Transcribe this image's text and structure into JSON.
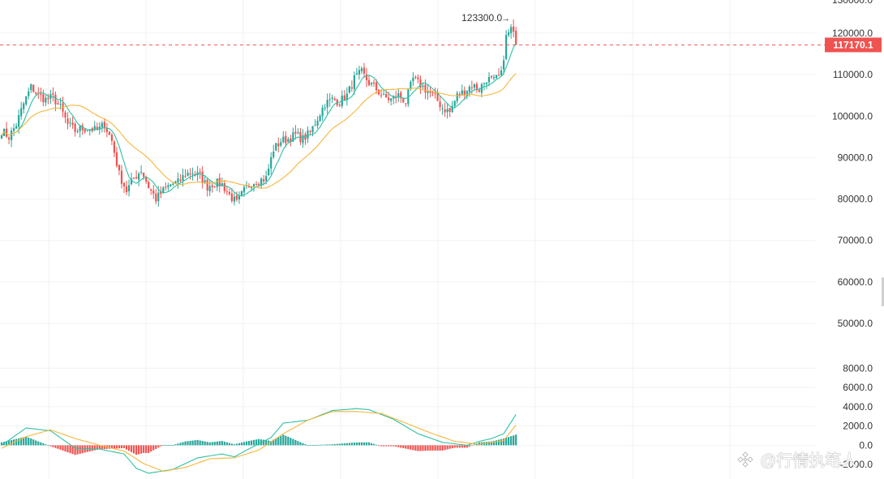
{
  "chart_data": [
    {
      "type": "candlestick",
      "panel": "price",
      "ylim": [
        42000,
        128000
      ],
      "y_ticks": [
        {
          "value": 120000,
          "label": "120000.0"
        },
        {
          "value": 110000,
          "label": "110000.0"
        },
        {
          "value": 100000,
          "label": "100000.0"
        },
        {
          "value": 90000,
          "label": "90000.0"
        },
        {
          "value": 80000,
          "label": "80000.0"
        },
        {
          "value": 70000,
          "label": "70000.0"
        },
        {
          "value": 60000,
          "label": "60000.0"
        },
        {
          "value": 50000,
          "label": "50000.0"
        }
      ],
      "top_cut_label": "130000.0",
      "current_price": 117170.1,
      "current_price_label": "117170.1",
      "high_marker": {
        "value": 123300,
        "label": "123300.0"
      },
      "series": [
        {
          "kind": "ohlc",
          "close_anchors": [
            [
              0,
              96500
            ],
            [
              3,
              95000
            ],
            [
              6,
              98000
            ],
            [
              9,
              103000
            ],
            [
              12,
              107000
            ],
            [
              15,
              105000
            ],
            [
              18,
              104000
            ],
            [
              21,
              104500
            ],
            [
              24,
              102000
            ],
            [
              27,
              98000
            ],
            [
              30,
              96500
            ],
            [
              33,
              97000
            ],
            [
              36,
              97000
            ],
            [
              39,
              96500
            ],
            [
              42,
              98000
            ],
            [
              45,
              94000
            ],
            [
              48,
              86000
            ],
            [
              51,
              82000
            ],
            [
              54,
              85000
            ],
            [
              57,
              87000
            ],
            [
              60,
              83000
            ],
            [
              63,
              80000
            ],
            [
              66,
              82000
            ],
            [
              69,
              83500
            ],
            [
              72,
              84000
            ],
            [
              75,
              86000
            ],
            [
              78,
              86500
            ],
            [
              81,
              85500
            ],
            [
              84,
              83000
            ],
            [
              87,
              84000
            ],
            [
              90,
              83500
            ],
            [
              93,
              81000
            ],
            [
              96,
              79000
            ],
            [
              99,
              82000
            ],
            [
              102,
              84000
            ],
            [
              105,
              84500
            ],
            [
              108,
              85000
            ],
            [
              111,
              92000
            ],
            [
              114,
              94000
            ],
            [
              117,
              94500
            ],
            [
              120,
              95500
            ],
            [
              123,
              94500
            ],
            [
              126,
              96000
            ],
            [
              129,
              99500
            ],
            [
              132,
              103000
            ],
            [
              135,
              104000
            ],
            [
              138,
              103500
            ],
            [
              141,
              105000
            ],
            [
              144,
              109000
            ],
            [
              147,
              110500
            ],
            [
              150,
              108000
            ],
            [
              153,
              106500
            ],
            [
              156,
              104500
            ],
            [
              159,
              104000
            ],
            [
              162,
              105000
            ],
            [
              165,
              103500
            ],
            [
              168,
              109000
            ],
            [
              171,
              107500
            ],
            [
              174,
              106000
            ],
            [
              177,
              104500
            ],
            [
              180,
              102000
            ],
            [
              183,
              101000
            ],
            [
              186,
              105000
            ],
            [
              189,
              106000
            ],
            [
              192,
              107500
            ],
            [
              195,
              106500
            ],
            [
              198,
              109000
            ],
            [
              201,
              108500
            ],
            [
              204,
              110000
            ],
            [
              206,
              119000
            ],
            [
              208,
              121000
            ],
            [
              209,
              119500
            ],
            [
              210,
              117170
            ]
          ]
        },
        {
          "kind": "ma_fast",
          "color": "#2fc0a6"
        },
        {
          "kind": "ma_slow",
          "color": "#f6b63c"
        }
      ],
      "colors": {
        "up": "#26a69a",
        "down": "#ef5350",
        "price_line": "#ef5350",
        "grid": "#f2f2f2"
      }
    },
    {
      "type": "macd",
      "panel": "macd",
      "ylim": [
        -3500,
        9200
      ],
      "y_ticks": [
        {
          "value": 8000,
          "label": "8000.0"
        },
        {
          "value": 6000,
          "label": "6000.0"
        },
        {
          "value": 4000,
          "label": "4000.0"
        },
        {
          "value": 2000,
          "label": "2000.0"
        },
        {
          "value": 0,
          "label": "0.0"
        }
      ],
      "bottom_cut_label": "-2000.0",
      "series": [
        {
          "name": "DIF",
          "color": "#2fc0a6",
          "anchors": [
            [
              0,
              0
            ],
            [
              10,
              1800
            ],
            [
              20,
              1500
            ],
            [
              30,
              -300
            ],
            [
              40,
              -400
            ],
            [
              50,
              -900
            ],
            [
              55,
              -2400
            ],
            [
              60,
              -2900
            ],
            [
              70,
              -2500
            ],
            [
              80,
              -1300
            ],
            [
              90,
              -900
            ],
            [
              95,
              -1200
            ],
            [
              100,
              -500
            ],
            [
              110,
              800
            ],
            [
              115,
              2300
            ],
            [
              125,
              2600
            ],
            [
              135,
              3600
            ],
            [
              145,
              3800
            ],
            [
              150,
              3700
            ],
            [
              160,
              2700
            ],
            [
              170,
              1200
            ],
            [
              180,
              300
            ],
            [
              190,
              0
            ],
            [
              195,
              400
            ],
            [
              200,
              700
            ],
            [
              205,
              1200
            ],
            [
              210,
              3200
            ]
          ]
        },
        {
          "name": "DEA",
          "color": "#f6b63c",
          "anchors": [
            [
              0,
              -300
            ],
            [
              10,
              900
            ],
            [
              20,
              1600
            ],
            [
              30,
              700
            ],
            [
              40,
              0
            ],
            [
              50,
              -600
            ],
            [
              58,
              -1900
            ],
            [
              66,
              -2700
            ],
            [
              75,
              -2300
            ],
            [
              85,
              -1400
            ],
            [
              95,
              -1300
            ],
            [
              105,
              -500
            ],
            [
              115,
              1200
            ],
            [
              125,
              2600
            ],
            [
              135,
              3500
            ],
            [
              145,
              3500
            ],
            [
              155,
              3300
            ],
            [
              165,
              2300
            ],
            [
              175,
              1300
            ],
            [
              185,
              400
            ],
            [
              195,
              100
            ],
            [
              205,
              500
            ],
            [
              210,
              2100
            ]
          ]
        },
        {
          "name": "MACD",
          "kind": "histogram",
          "up_color": "#26a69a",
          "down_color": "#ef5350"
        }
      ]
    }
  ],
  "watermark": {
    "icon": "binance-diamond-icon",
    "text": "@行情执笔人"
  }
}
